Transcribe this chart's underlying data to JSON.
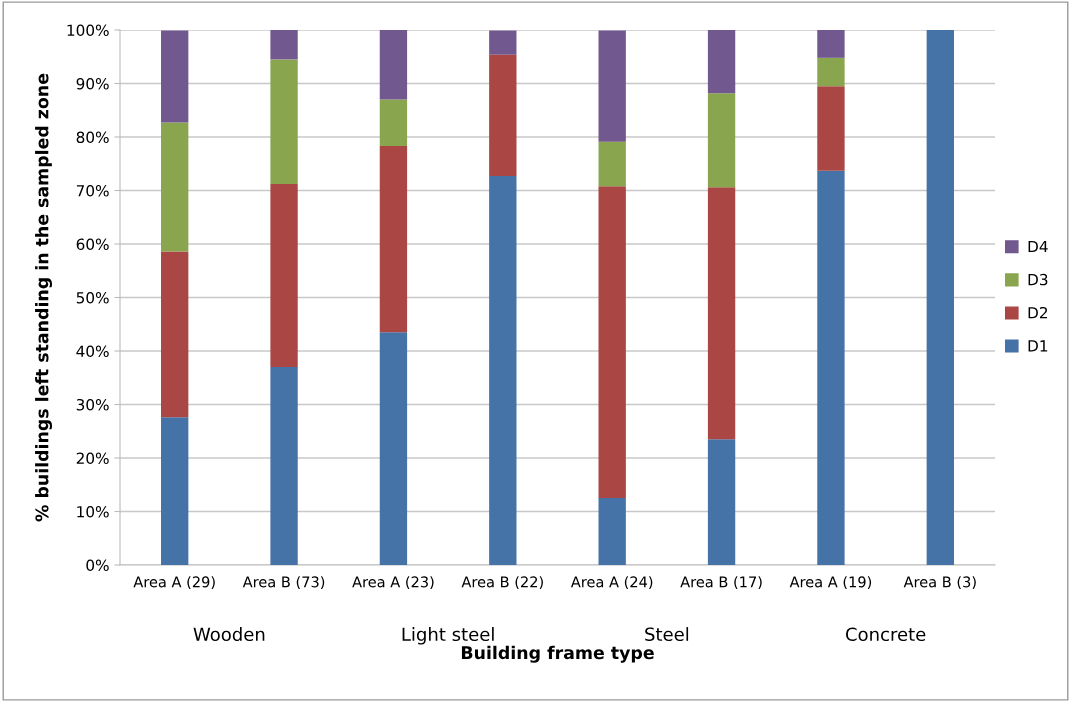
{
  "chart_data": {
    "type": "bar",
    "stacked": true,
    "xlabel": "Building frame type",
    "ylabel": "% buildings left standing in the sampled zone",
    "categories": [
      "Area A (29)",
      "Area B (73)",
      "Area A (23)",
      "Area B (22)",
      "Area A (24)",
      "Area B (17)",
      "Area A (19)",
      "Area B (3)"
    ],
    "annotations": [
      "Wooden",
      "Light steel",
      "Steel",
      "Concrete"
    ],
    "series": [
      {
        "name": "D1",
        "color": "#4572a7",
        "values": [
          27.6,
          37.0,
          43.5,
          72.7,
          12.5,
          23.5,
          73.7,
          100
        ]
      },
      {
        "name": "D2",
        "color": "#aa4643",
        "values": [
          31.0,
          34.2,
          34.8,
          22.7,
          58.3,
          47.1,
          15.8,
          0
        ]
      },
      {
        "name": "D3",
        "color": "#89a54e",
        "values": [
          24.1,
          23.3,
          8.7,
          0,
          8.3,
          17.6,
          5.3,
          0
        ]
      },
      {
        "name": "D4",
        "color": "#71588f",
        "values": [
          17.2,
          5.5,
          13.0,
          4.5,
          20.8,
          11.8,
          5.3,
          0
        ]
      }
    ],
    "ylim": [
      0,
      100
    ],
    "yticks": [
      {
        "value": 0,
        "label": "0%"
      },
      {
        "value": 10,
        "label": "10%"
      },
      {
        "value": 20,
        "label": "20%"
      },
      {
        "value": 30,
        "label": "30%"
      },
      {
        "value": 40,
        "label": "40%"
      },
      {
        "value": 50,
        "label": "50%"
      },
      {
        "value": 60,
        "label": "60%"
      },
      {
        "value": 70,
        "label": "70%"
      },
      {
        "value": 80,
        "label": "80%"
      },
      {
        "value": 90,
        "label": "90%"
      },
      {
        "value": 100,
        "label": "100%"
      }
    ],
    "grid": "y",
    "legend": "right"
  }
}
